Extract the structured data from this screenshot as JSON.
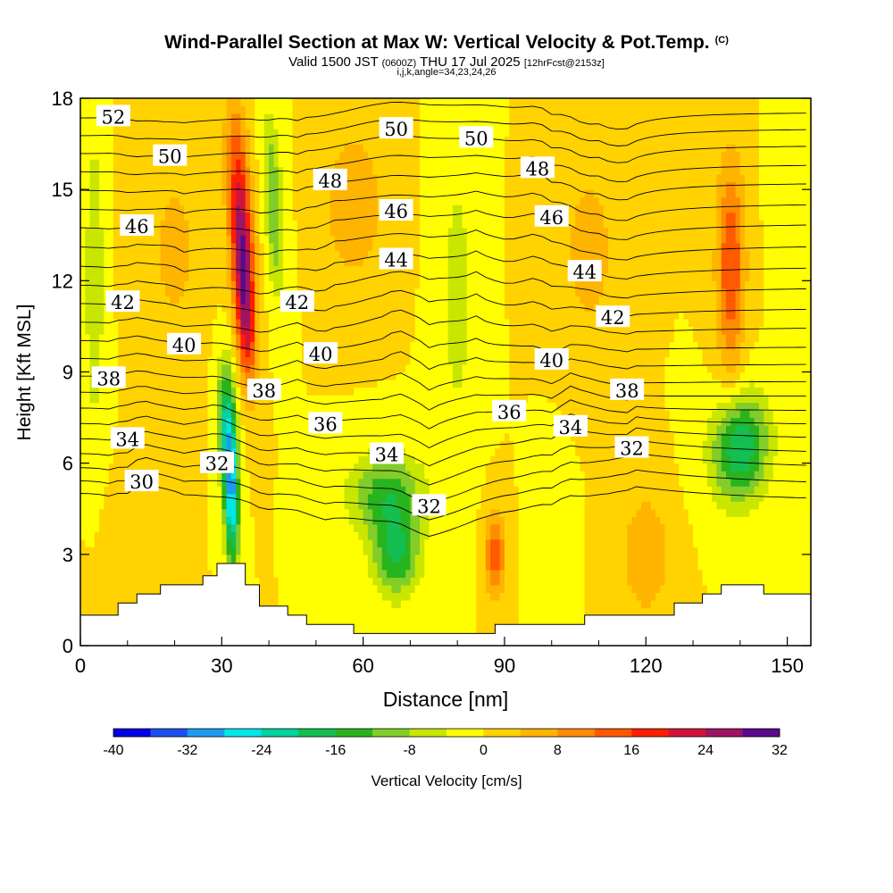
{
  "titles": {
    "main": "Wind-Parallel Section at Max W: Vertical Velocity & Pot.Temp.",
    "copyright": "(C)",
    "valid_prefix": "Valid 1500 JST",
    "valid_utc": "(0600Z)",
    "valid_date": "THU 17 Jul 2025",
    "forecast": "[12hrFcst@2153z]",
    "indices": "i,j,k,angle=34,23,24,26"
  },
  "chart_data": {
    "type": "heatmap",
    "xlabel": "Distance [nm]",
    "ylabel": "Height [Kft MSL]",
    "xlim": [
      0,
      155
    ],
    "ylim": [
      0,
      18
    ],
    "x_ticks": [
      0,
      30,
      60,
      90,
      120,
      150
    ],
    "y_ticks": [
      0,
      3,
      6,
      9,
      12,
      15,
      18
    ],
    "colorbar": {
      "label": "Vertical Velocity [cm/s]",
      "range": [
        -40,
        32
      ],
      "step": 4,
      "tick_labels": [
        "-40",
        "-32",
        "-24",
        "-16",
        "-8",
        "0",
        "8",
        "16",
        "24",
        "32"
      ],
      "colors": [
        "#0000e6",
        "#1e50f0",
        "#1e9bf0",
        "#00e6e6",
        "#00d2a0",
        "#14be50",
        "#28b41e",
        "#82cd28",
        "#c8e600",
        "#ffff00",
        "#ffd200",
        "#ffb400",
        "#ff8c00",
        "#ff5a00",
        "#ff1e00",
        "#d2143c",
        "#a01464",
        "#5a0a8c"
      ]
    },
    "terrain": [
      [
        0,
        1.0
      ],
      [
        8,
        1.0
      ],
      [
        8,
        1.4
      ],
      [
        12,
        1.4
      ],
      [
        12,
        1.7
      ],
      [
        17,
        1.7
      ],
      [
        17,
        2.0
      ],
      [
        26,
        2.0
      ],
      [
        26,
        2.3
      ],
      [
        29,
        2.3
      ],
      [
        29,
        2.7
      ],
      [
        35,
        2.7
      ],
      [
        35,
        2.0
      ],
      [
        38,
        2.0
      ],
      [
        38,
        1.3
      ],
      [
        44,
        1.3
      ],
      [
        44,
        1.0
      ],
      [
        48,
        1.0
      ],
      [
        48,
        0.7
      ],
      [
        58,
        0.7
      ],
      [
        58,
        0.4
      ],
      [
        88,
        0.4
      ],
      [
        88,
        0.7
      ],
      [
        107,
        0.7
      ],
      [
        107,
        1.0
      ],
      [
        126,
        1.0
      ],
      [
        126,
        1.4
      ],
      [
        132,
        1.4
      ],
      [
        132,
        1.7
      ],
      [
        136,
        1.7
      ],
      [
        136,
        2.0
      ],
      [
        145,
        2.0
      ],
      [
        145,
        1.7
      ],
      [
        155,
        1.7
      ]
    ],
    "theta_contour_labels": [
      {
        "text": "52",
        "x": 7,
        "y": 17.4
      },
      {
        "text": "50",
        "x": 19,
        "y": 16.1
      },
      {
        "text": "50",
        "x": 67,
        "y": 17.0
      },
      {
        "text": "50",
        "x": 84,
        "y": 16.7
      },
      {
        "text": "48",
        "x": 53,
        "y": 15.3
      },
      {
        "text": "48",
        "x": 97,
        "y": 15.7
      },
      {
        "text": "46",
        "x": 12,
        "y": 13.8
      },
      {
        "text": "46",
        "x": 67,
        "y": 14.3
      },
      {
        "text": "46",
        "x": 100,
        "y": 14.1
      },
      {
        "text": "44",
        "x": 67,
        "y": 12.7
      },
      {
        "text": "44",
        "x": 107,
        "y": 12.3
      },
      {
        "text": "42",
        "x": 9,
        "y": 11.3
      },
      {
        "text": "42",
        "x": 46,
        "y": 11.3
      },
      {
        "text": "42",
        "x": 113,
        "y": 10.8
      },
      {
        "text": "40",
        "x": 22,
        "y": 9.9
      },
      {
        "text": "40",
        "x": 51,
        "y": 9.6
      },
      {
        "text": "40",
        "x": 100,
        "y": 9.4
      },
      {
        "text": "38",
        "x": 6,
        "y": 8.8
      },
      {
        "text": "38",
        "x": 39,
        "y": 8.4
      },
      {
        "text": "38",
        "x": 116,
        "y": 8.4
      },
      {
        "text": "36",
        "x": 52,
        "y": 7.3
      },
      {
        "text": "36",
        "x": 91,
        "y": 7.7
      },
      {
        "text": "34",
        "x": 10,
        "y": 6.8
      },
      {
        "text": "34",
        "x": 65,
        "y": 6.3
      },
      {
        "text": "34",
        "x": 104,
        "y": 7.2
      },
      {
        "text": "32",
        "x": 29,
        "y": 6.0
      },
      {
        "text": "32",
        "x": 74,
        "y": 4.6
      },
      {
        "text": "32",
        "x": 117,
        "y": 6.5
      },
      {
        "text": "30",
        "x": 13,
        "y": 5.4
      }
    ],
    "w_features": [
      {
        "x": 34,
        "y": 14.0,
        "value": 22,
        "sx": 2.5,
        "sy": 3.5,
        "tilt": -0.35
      },
      {
        "x": 35,
        "y": 11.0,
        "value": 18,
        "sx": 2.0,
        "sy": 2.5,
        "tilt": -0.3
      },
      {
        "x": 32,
        "y": 5.0,
        "value": -28,
        "sx": 1.6,
        "sy": 2.4,
        "tilt": -0.15
      },
      {
        "x": 31,
        "y": 7.5,
        "value": -16,
        "sx": 2.0,
        "sy": 2.0,
        "tilt": -0.2
      },
      {
        "x": 41,
        "y": 14.5,
        "value": -12,
        "sx": 2.0,
        "sy": 3.0,
        "tilt": -0.35
      },
      {
        "x": 65,
        "y": 5.0,
        "value": -14,
        "sx": 8.0,
        "sy": 1.4,
        "tilt": 0
      },
      {
        "x": 67,
        "y": 3.0,
        "value": -16,
        "sx": 5.0,
        "sy": 1.4,
        "tilt": 0
      },
      {
        "x": 140,
        "y": 6.5,
        "value": -20,
        "sx": 6.0,
        "sy": 1.8,
        "tilt": 0.3
      },
      {
        "x": 88,
        "y": 3.0,
        "value": 16,
        "sx": 2.0,
        "sy": 1.3,
        "tilt": 0
      },
      {
        "x": 138,
        "y": 12.5,
        "value": 16,
        "sx": 3.0,
        "sy": 3.5,
        "tilt": 0
      },
      {
        "x": 80,
        "y": 11.5,
        "value": -6,
        "sx": 3.5,
        "sy": 5.0,
        "tilt": 0
      },
      {
        "x": 3,
        "y": 12.0,
        "value": -8,
        "sx": 2.0,
        "sy": 5.0,
        "tilt": 0
      },
      {
        "x": 58,
        "y": 14.5,
        "value": 8,
        "sx": 6.0,
        "sy": 2.5,
        "tilt": 0
      },
      {
        "x": 108,
        "y": 13.0,
        "value": 6,
        "sx": 6.0,
        "sy": 3.0,
        "tilt": 0
      },
      {
        "x": 20,
        "y": 13.0,
        "value": 5,
        "sx": 6.0,
        "sy": 4.0,
        "tilt": 0
      },
      {
        "x": 120,
        "y": 3.0,
        "value": 8,
        "sx": 5.0,
        "sy": 2.0,
        "tilt": 0
      },
      {
        "x": 10,
        "y": 2.5,
        "value": 4,
        "sx": 5.0,
        "sy": 2.0,
        "tilt": 0
      },
      {
        "x": 100,
        "y": 4.0,
        "value": -4,
        "sx": 3.0,
        "sy": 2.0,
        "tilt": 0
      },
      {
        "x": 150,
        "y": 15.0,
        "value": -4,
        "sx": 3.0,
        "sy": 3.0,
        "tilt": 0
      }
    ]
  }
}
